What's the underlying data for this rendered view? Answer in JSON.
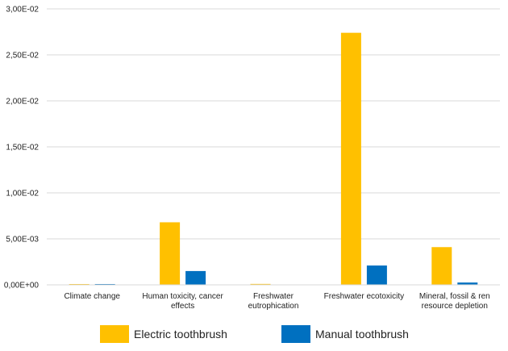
{
  "chart_data": {
    "type": "bar",
    "categories": [
      [
        "Climate change"
      ],
      [
        "Human toxicity, cancer",
        "effects"
      ],
      [
        "Freshwater",
        "eutrophication"
      ],
      [
        "Freshwater ecotoxicity"
      ],
      [
        "Mineral, fossil & ren",
        "resource depletion"
      ]
    ],
    "series": [
      {
        "name": "Electric toothbrush",
        "color": "#FFC000",
        "values": [
          5e-05,
          0.0068,
          0.0001,
          0.0274,
          0.0041
        ]
      },
      {
        "name": "Manual toothbrush",
        "color": "#0070C0",
        "values": [
          7e-05,
          0.0015,
          0.0,
          0.0021,
          0.00025
        ]
      }
    ],
    "y_ticks": [
      {
        "value": 0,
        "label": "0,00E+00"
      },
      {
        "value": 0.005,
        "label": "5,00E-03"
      },
      {
        "value": 0.01,
        "label": "1,00E-02"
      },
      {
        "value": 0.015,
        "label": "1,50E-02"
      },
      {
        "value": 0.02,
        "label": "2,00E-02"
      },
      {
        "value": 0.025,
        "label": "2,50E-02"
      },
      {
        "value": 0.03,
        "label": "3,00E-02"
      }
    ],
    "ylim": [
      0,
      0.03
    ],
    "grid": true,
    "legend_position": "bottom"
  }
}
